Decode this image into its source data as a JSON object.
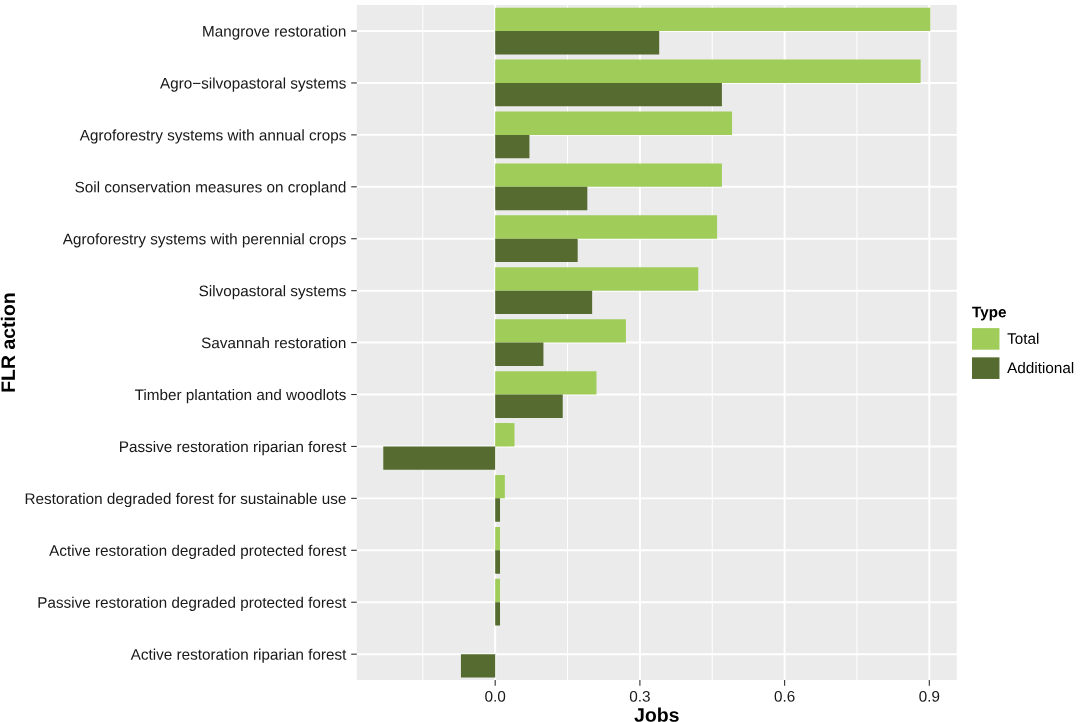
{
  "chart_data": {
    "type": "bar",
    "orientation": "horizontal",
    "xlabel": "Jobs",
    "ylabel": "FLR action",
    "legend_title": "Type",
    "legend": "right",
    "grid": true,
    "categories": [
      "Mangrove restoration",
      "Agro−silvopastoral systems",
      "Agroforestry systems with annual crops",
      "Soil conservation measures on cropland",
      "Agroforestry systems with perennial crops",
      "Silvopastoral systems",
      "Savannah restoration",
      "Timber plantation and woodlots",
      "Passive restoration riparian forest",
      "Restoration degraded forest for sustainable use",
      "Active restoration degraded protected forest",
      "Passive restoration degraded protected forest",
      "Active restoration riparian forest"
    ],
    "series": [
      {
        "name": "Total",
        "color": "#a0cc5a",
        "values": [
          0.902,
          0.882,
          0.491,
          0.47,
          0.46,
          0.421,
          0.271,
          0.21,
          0.04,
          0.02,
          0.01,
          0.01,
          0.0
        ]
      },
      {
        "name": "Additional",
        "color": "#556b2f",
        "values": [
          0.34,
          0.47,
          0.071,
          0.191,
          0.171,
          0.201,
          0.1,
          0.14,
          -0.232,
          0.01,
          0.01,
          0.01,
          -0.071
        ]
      }
    ],
    "xlim": [
      -0.287,
      0.957
    ],
    "xticks": [
      {
        "value": 0,
        "label": "0.0"
      },
      0.3,
      0.6,
      0.9
    ]
  }
}
